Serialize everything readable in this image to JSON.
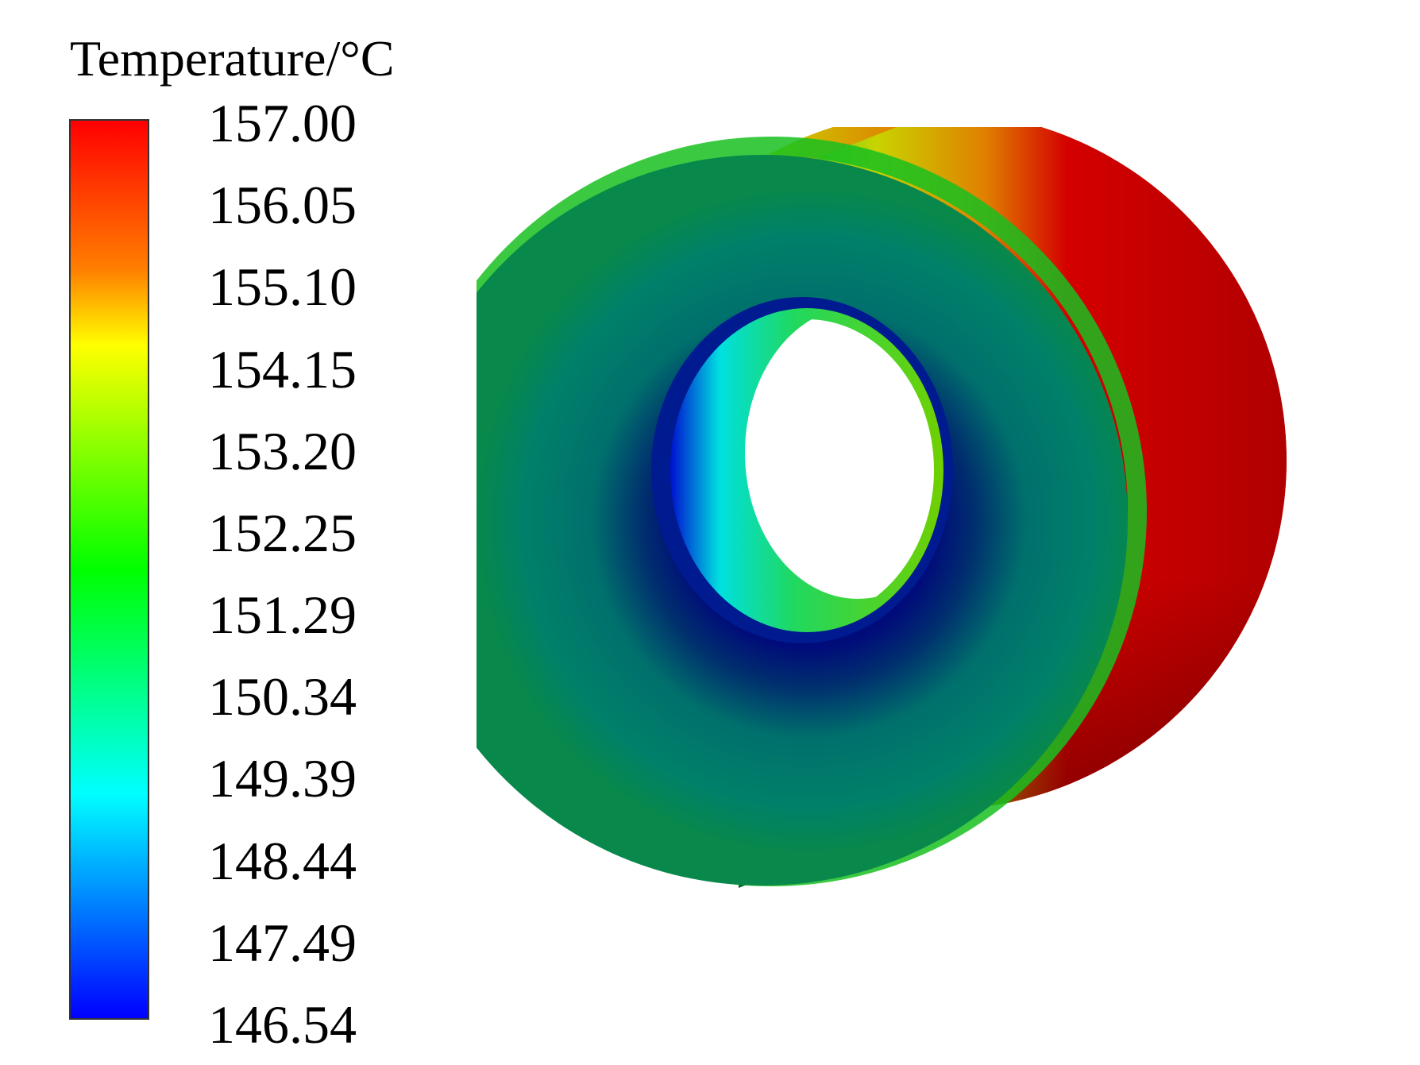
{
  "legend": {
    "title": "Temperature/°C",
    "ticks": [
      "157.00",
      "156.05",
      "155.10",
      "154.15",
      "153.20",
      "152.25",
      "151.29",
      "150.34",
      "149.39",
      "148.44",
      "147.49",
      "146.54"
    ],
    "colors": [
      "#ff0000",
      "#ff8000",
      "#ffff00",
      "#00ff00",
      "#00ffff",
      "#0000ff"
    ],
    "min": 146.54,
    "max": 157.0
  },
  "model": {
    "tread_color": "#d40000",
    "face_color": "#007a6e",
    "inner_ring_color": "#001a80"
  }
}
